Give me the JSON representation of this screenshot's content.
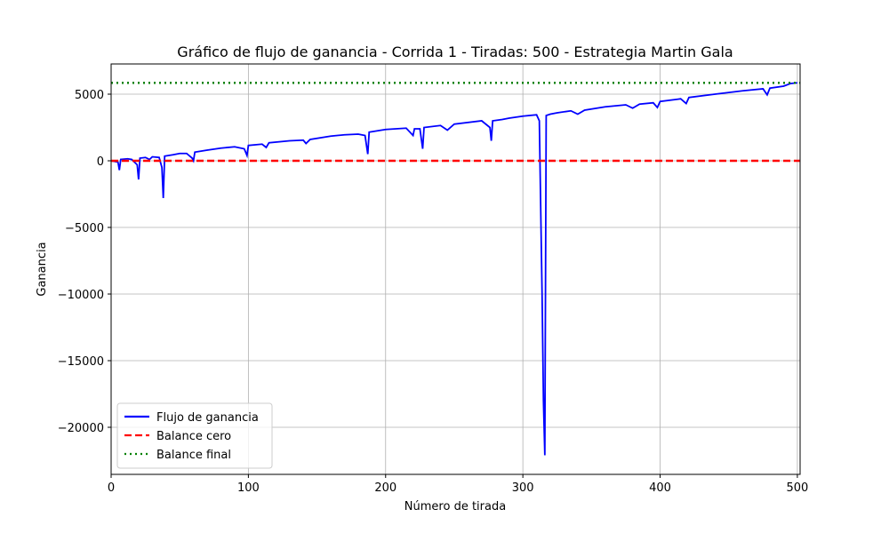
{
  "chart_data": {
    "type": "line",
    "title": "Gráfico de flujo de ganancia - Corrida 1 - Tiradas: 500 - Estrategia Martin Gala",
    "xlabel": "Número de tirada",
    "ylabel": "Ganancia",
    "xlim": [
      0,
      502
    ],
    "ylim": [
      -23533,
      7267
    ],
    "xticks": [
      0,
      100,
      200,
      300,
      400,
      500
    ],
    "yticks": [
      {
        "value": -20000,
        "label": "−20000"
      },
      {
        "value": -15000,
        "label": "−15000"
      },
      {
        "value": -10000,
        "label": "−10000"
      },
      {
        "value": -5000,
        "label": "−5000"
      },
      0,
      5000
    ],
    "grid": true,
    "legend": "lower left",
    "series": [
      {
        "name": "Flujo de ganancia",
        "color": "#0000ff",
        "x": [
          0,
          5,
          6,
          7,
          12,
          15,
          19,
          20,
          21,
          25,
          28,
          30,
          35,
          37,
          38,
          39,
          45,
          50,
          55,
          59,
          60,
          61,
          70,
          80,
          90,
          97,
          99,
          100,
          110,
          113,
          115,
          130,
          140,
          142,
          145,
          160,
          170,
          180,
          185,
          187,
          188,
          200,
          215,
          220,
          221,
          225,
          227,
          228,
          240,
          245,
          250,
          270,
          276,
          277,
          278,
          285,
          290,
          300,
          310,
          312,
          314,
          315,
          316,
          317,
          320,
          325,
          335,
          340,
          345,
          360,
          375,
          380,
          385,
          395,
          398,
          400,
          415,
          419,
          421,
          440,
          460,
          475,
          478,
          480,
          490,
          495,
          500
        ],
        "values": [
          0,
          -100,
          -700,
          100,
          150,
          100,
          -300,
          -1400,
          200,
          250,
          100,
          300,
          250,
          -500,
          -2800,
          350,
          450,
          550,
          550,
          200,
          0,
          650,
          800,
          950,
          1050,
          900,
          400,
          1150,
          1250,
          1000,
          1350,
          1500,
          1550,
          1300,
          1600,
          1850,
          1950,
          2000,
          1900,
          500,
          2150,
          2350,
          2450,
          1900,
          2400,
          2400,
          900,
          2500,
          2650,
          2300,
          2750,
          3000,
          2500,
          1500,
          3000,
          3100,
          3200,
          3350,
          3450,
          3000,
          -10000,
          -18000,
          -22100,
          3400,
          3500,
          3600,
          3750,
          3500,
          3800,
          4050,
          4200,
          3950,
          4250,
          4350,
          4000,
          4450,
          4650,
          4300,
          4750,
          5000,
          5250,
          5400,
          4950,
          5450,
          5600,
          5800,
          5850
        ]
      }
    ],
    "reference_lines": [
      {
        "name": "Balance cero",
        "value": 0,
        "color": "#ff0000",
        "style": "dashed"
      },
      {
        "name": "Balance final",
        "value": 5850,
        "color": "#008000",
        "style": "dotted"
      }
    ]
  }
}
